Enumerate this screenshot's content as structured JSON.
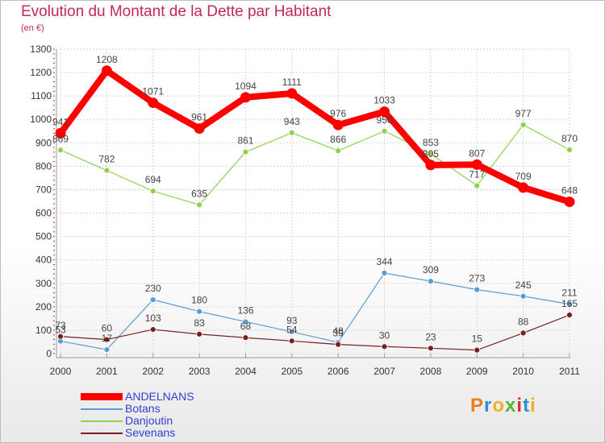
{
  "title": "Evolution du Montant de la Dette par Habitant",
  "subtitle": "(en €)",
  "brand": {
    "letters": [
      "P",
      "r",
      "o",
      "x",
      "i",
      "t",
      "i"
    ],
    "colors": [
      "#ef7d1a",
      "#2e8ed8",
      "#f2b01e",
      "#55b541",
      "#d8342a",
      "#2e8ed8",
      "#f2b01e"
    ]
  },
  "chart_data": {
    "type": "line",
    "x": [
      "2000",
      "2001",
      "2002",
      "2003",
      "2004",
      "2005",
      "2006",
      "2007",
      "2008",
      "2009",
      "2010",
      "2011"
    ],
    "ylim": [
      0,
      1300
    ],
    "yticks": [
      "0",
      "100",
      "200",
      "300",
      "400",
      "500",
      "600",
      "700",
      "800",
      "900",
      "1000",
      "1100",
      "1200",
      "1300"
    ],
    "grid": true,
    "legend_position": "bottom-left",
    "series": [
      {
        "name": "ANDELNANS",
        "color": "#ff0000",
        "values": [
          941,
          1208,
          1071,
          961,
          1094,
          1111,
          976,
          1033,
          805,
          807,
          709,
          648
        ],
        "labels": [
          "941",
          "1208",
          "1071",
          "961",
          "1094",
          "1111",
          "976",
          "1033",
          "805",
          "807",
          "709",
          "648"
        ]
      },
      {
        "name": "Botans",
        "color": "#5b9bd5",
        "values": [
          53,
          17,
          230,
          180,
          136,
          93,
          48,
          344,
          309,
          273,
          245,
          211
        ],
        "labels": [
          "53",
          "17",
          "230",
          "180",
          "136",
          "93",
          "48",
          "344",
          "309",
          "273",
          "245",
          "211"
        ]
      },
      {
        "name": "Danjoutin",
        "color": "#8fd14f",
        "values": [
          869,
          782,
          694,
          635,
          861,
          943,
          866,
          950,
          853,
          717,
          977,
          870
        ],
        "labels": [
          "869",
          "782",
          "694",
          "635",
          "861",
          "943",
          "866",
          "950",
          "853",
          "717",
          "977",
          "870"
        ]
      },
      {
        "name": "Sevenans",
        "color": "#7a1f1f",
        "values": [
          73,
          60,
          103,
          83,
          68,
          54,
          39,
          30,
          23,
          15,
          88,
          165
        ],
        "labels": [
          "73",
          "60",
          "103",
          "83",
          "68",
          "54",
          "39",
          "30",
          "23",
          "15",
          "88",
          "165"
        ]
      }
    ]
  }
}
